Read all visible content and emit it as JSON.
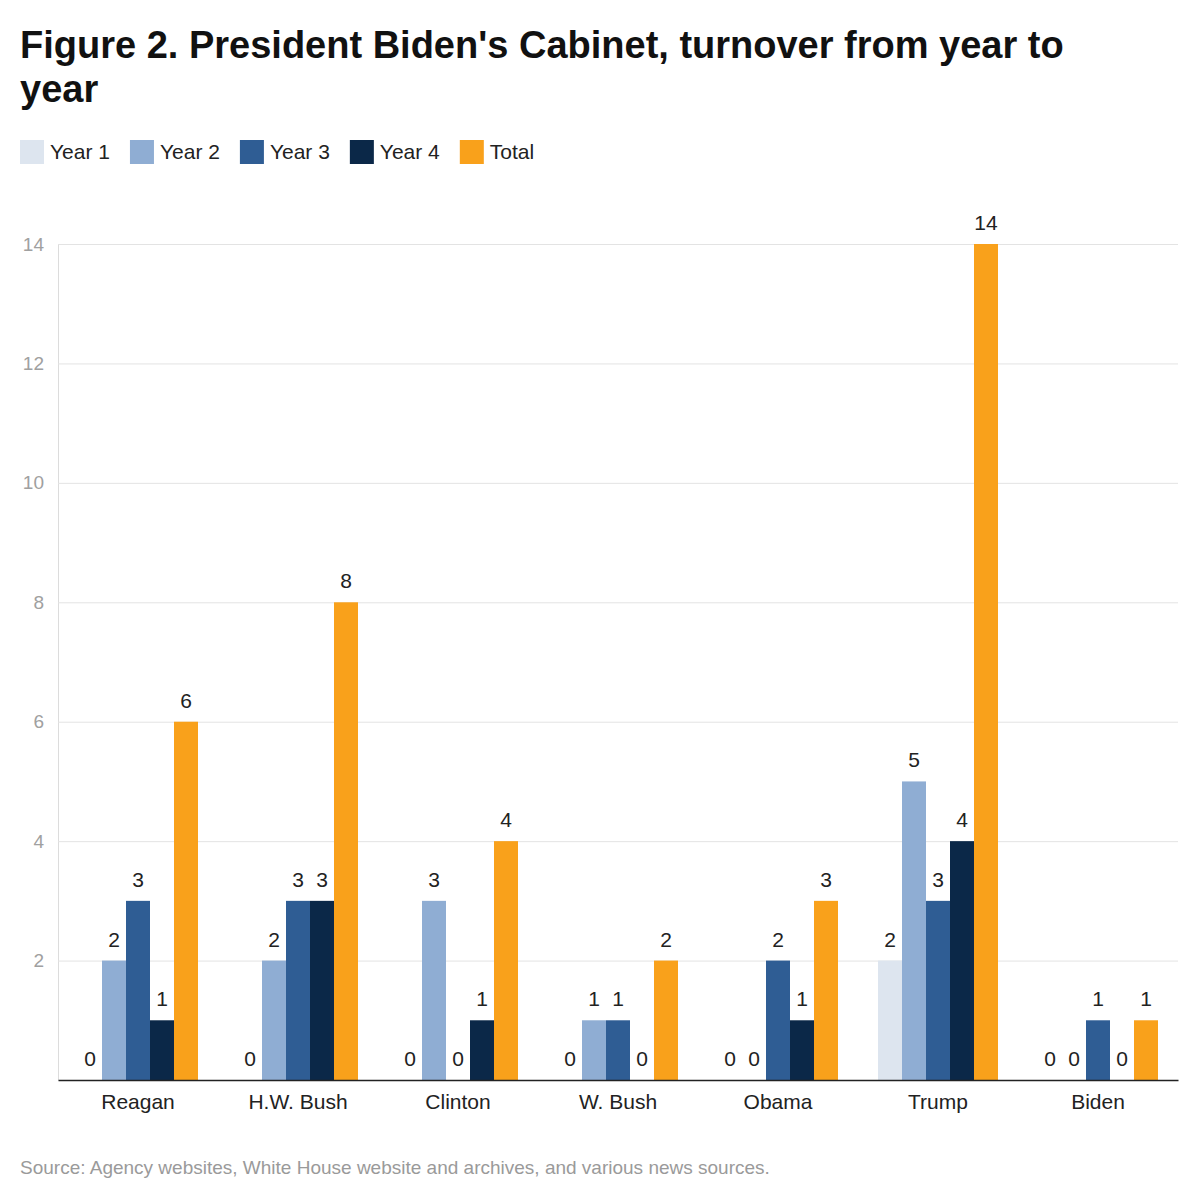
{
  "chart_data": {
    "type": "bar",
    "title": "Figure 2. President Biden's Cabinet, turnover from year to year",
    "categories": [
      "Reagan",
      "H.W. Bush",
      "Clinton",
      "W. Bush",
      "Obama",
      "Trump",
      "Biden"
    ],
    "series": [
      {
        "name": "Year 1",
        "color": "#dde5ef",
        "values": [
          0,
          0,
          0,
          0,
          0,
          2,
          0
        ]
      },
      {
        "name": "Year 2",
        "color": "#8fadd3",
        "values": [
          2,
          2,
          3,
          1,
          0,
          5,
          0
        ]
      },
      {
        "name": "Year 3",
        "color": "#2f5d94",
        "values": [
          3,
          3,
          0,
          1,
          2,
          3,
          1
        ]
      },
      {
        "name": "Year 4",
        "color": "#0b2848",
        "values": [
          1,
          3,
          1,
          0,
          1,
          4,
          0
        ]
      },
      {
        "name": "Total",
        "color": "#f9a11b",
        "values": [
          6,
          8,
          4,
          2,
          3,
          14,
          1
        ]
      }
    ],
    "ylim": [
      0,
      14
    ],
    "yticks": [
      2,
      4,
      6,
      8,
      10,
      12,
      14
    ],
    "grid": true,
    "data_labels": true,
    "legend": "top-left",
    "annotations": [
      "Source: Agency websites, White House website and archives, and various news sources."
    ]
  }
}
